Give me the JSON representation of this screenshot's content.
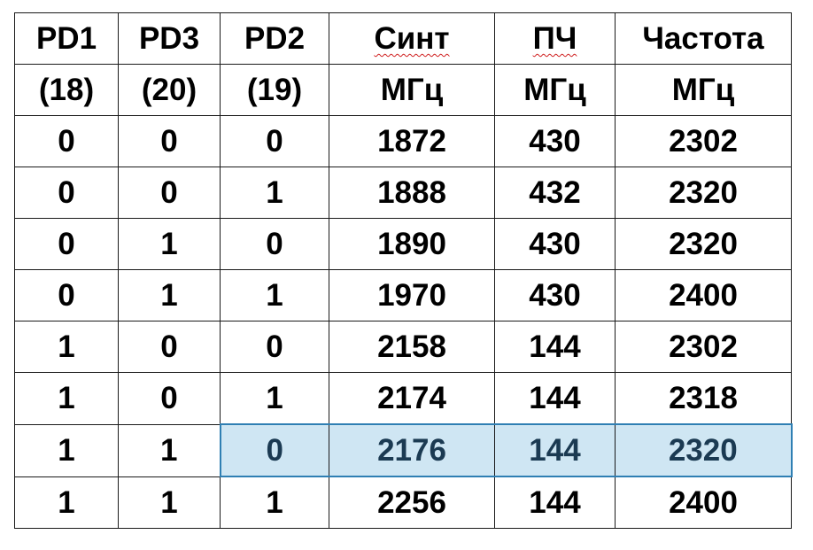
{
  "table": {
    "header_row1": [
      "PD1",
      "PD3",
      "PD2",
      "Синт",
      "ПЧ",
      "Частота"
    ],
    "header_row2": [
      "(18)",
      "(20)",
      "(19)",
      "МГц",
      "МГц",
      "МГц"
    ],
    "rows": [
      [
        "0",
        "0",
        "0",
        "1872",
        "430",
        "2302"
      ],
      [
        "0",
        "0",
        "1",
        "1888",
        "432",
        "2320"
      ],
      [
        "0",
        "1",
        "0",
        "1890",
        "430",
        "2320"
      ],
      [
        "0",
        "1",
        "1",
        "1970",
        "430",
        "2400"
      ],
      [
        "1",
        "0",
        "0",
        "2158",
        "144",
        "2302"
      ],
      [
        "1",
        "0",
        "1",
        "2174",
        "144",
        "2318"
      ],
      [
        "1",
        "1",
        "0",
        "2176",
        "144",
        "2320"
      ],
      [
        "1",
        "1",
        "1",
        "2256",
        "144",
        "2400"
      ]
    ],
    "highlight_color": "#cfe6f3",
    "highlight_border_color": "#2f7fb3",
    "spellcheck_underline_color": "#d02020"
  }
}
